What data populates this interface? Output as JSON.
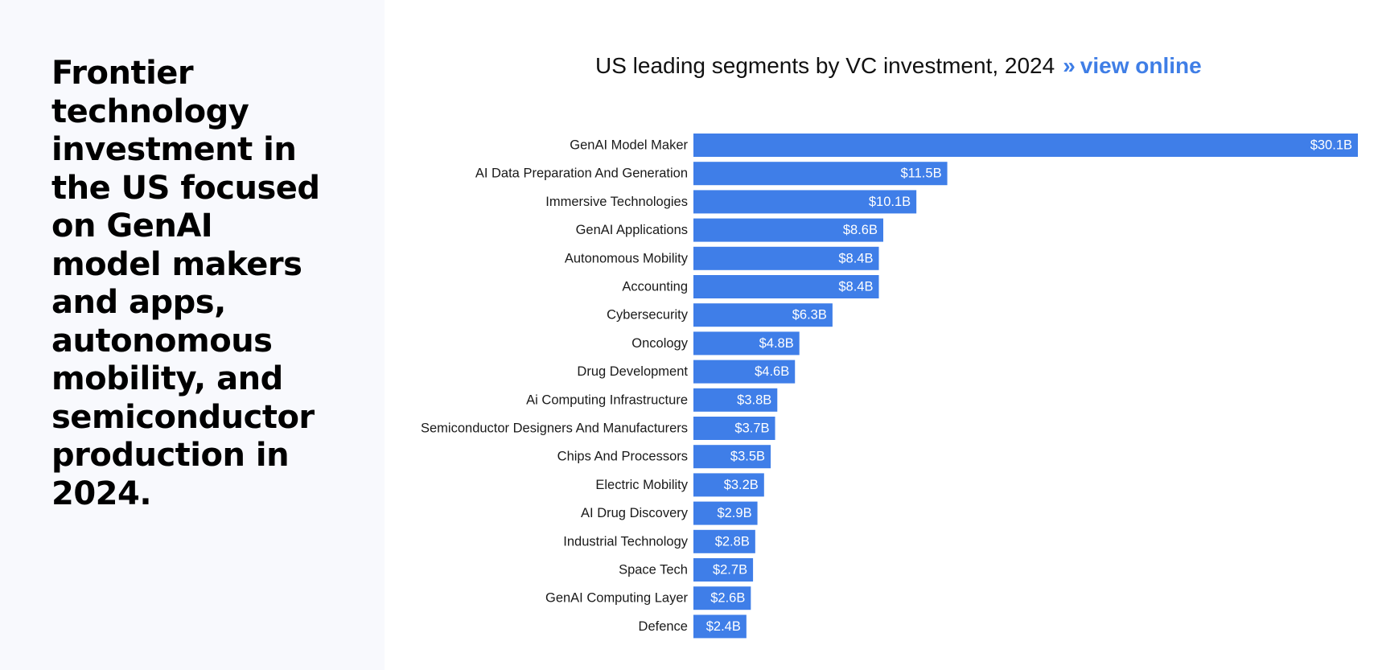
{
  "headline": "Frontier technology investment in the US focused on GenAI model makers and apps, autonomous mobility, and semiconductor production in 2024.",
  "chart_header": {
    "title": "US leading segments by VC investment, 2024",
    "separator": "»",
    "link_label": "view online"
  },
  "colors": {
    "bar": "#3f7ee8",
    "link": "#3f7ee6",
    "left_panel_bg": "#f8f9fd"
  },
  "chart_data": {
    "type": "bar",
    "orientation": "horizontal",
    "title": "US leading segments by VC investment, 2024",
    "xlabel": "",
    "ylabel": "",
    "unit": "$B",
    "grid": false,
    "legend": "none",
    "categories": [
      "GenAI Model Maker",
      "AI Data Preparation And Generation",
      "Immersive Technologies",
      "GenAI Applications",
      "Autonomous Mobility",
      "Accounting",
      "Cybersecurity",
      "Oncology",
      "Drug Development",
      "Ai Computing Infrastructure",
      "Semiconductor Designers And Manufacturers",
      "Chips And Processors",
      "Electric Mobility",
      "AI Drug Discovery",
      "Industrial Technology",
      "Space Tech",
      "GenAI Computing Layer",
      "Defence"
    ],
    "values": [
      30.1,
      11.5,
      10.1,
      8.6,
      8.4,
      8.4,
      6.3,
      4.8,
      4.6,
      3.8,
      3.7,
      3.5,
      3.2,
      2.9,
      2.8,
      2.7,
      2.6,
      2.4
    ],
    "value_labels": [
      "$30.1B",
      "$11.5B",
      "$10.1B",
      "$8.6B",
      "$8.4B",
      "$8.4B",
      "$6.3B",
      "$4.8B",
      "$4.6B",
      "$3.8B",
      "$3.7B",
      "$3.5B",
      "$3.2B",
      "$2.9B",
      "$2.8B",
      "$2.7B",
      "$2.6B",
      "$2.4B"
    ],
    "xlim": [
      0,
      30.1
    ]
  }
}
